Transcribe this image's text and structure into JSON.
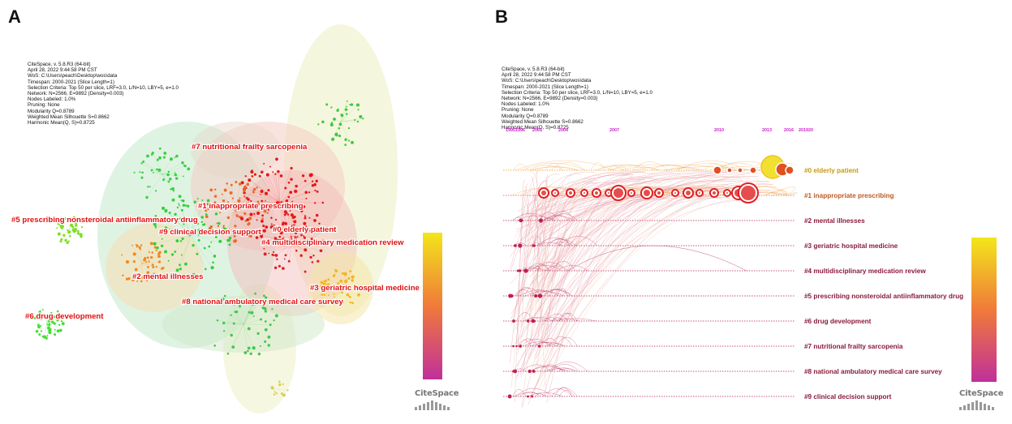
{
  "panel_a": {
    "letter": "A",
    "meta_lines": [
      "CiteSpace, v. 5.8.R3 (64-bit)",
      "April 28, 2022 9:44:58 PM CST",
      "WoS: C:\\Users\\peach\\Desktop\\wos\\data",
      "Timespan: 2000-2021 (Slice Length=1)",
      "Selection Criteria: Top 50 per slice, LRF=3.0, L/N=10, LBY=5, e=1.0",
      "Network: N=2566, E=9892 (Density=0.003)",
      "Nodes Labeled: 1.0%",
      "Pruning: None",
      "Modularity Q=0.8789",
      "Weighted Mean Silhouette S=0.8662",
      "Harmonic Mean(Q, S)=0.8725"
    ],
    "cluster_labels": [
      "#7 nutritional frailty sarcopenia",
      "#1 inappropriate prescribing",
      "#5 prescribing nonsteroidal antiinflammatory drug",
      "#9 clinical decision support",
      "#0 elderly patient",
      "#4 multidisciplinary medication review",
      "#2 mental illnesses",
      "#3 geriatric hospital medicine",
      "#8 national ambulatory medical care survey",
      "#6 drug development"
    ],
    "logo": "CiteSpace"
  },
  "panel_b": {
    "letter": "B",
    "meta_lines": [
      "CiteSpace, v. 5.8.R3 (64-bit)",
      "April 28, 2022 9:44:58 PM CST",
      "WoS: C:\\Users\\peach\\Desktop\\wos\\data",
      "Timespan: 2000-2021 (Slice Length=1)",
      "Selection Criteria: Top 50 per slice, LRF=3.0, L/N=10, LBY=5, e=1.0",
      "Network: N=2566, E=9892 (Density=0.003)",
      "Nodes Labeled: 1.0%",
      "Pruning: None",
      "Modularity Q=0.8789",
      "Weighted Mean Silhouette S=0.8662",
      "Harmonic Mean(Q, S)=0.8725"
    ],
    "year_ticks": [
      "19951996",
      "2001",
      "2004",
      "2007",
      "2010",
      "2013",
      "2016",
      "201920"
    ],
    "timeline_labels": [
      "#0 elderly patient",
      "#1 inappropriate prescribing",
      "#2 mental illnesses",
      "#3 geriatric hospital medicine",
      "#4 multidisciplinary medication review",
      "#5 prescribing nonsteroidal antiinflammatory drug",
      "#6 drug development",
      "#7 nutritional frailty sarcopenia",
      "#8 national ambulatory medical care survey",
      "#9 clinical decision support"
    ],
    "logo": "CiteSpace"
  },
  "colors": {
    "label_red": "#e01010",
    "label_gold": "#c89a10",
    "label_orange": "#c05a20",
    "label_maroon": "#8a1a3a",
    "year_tick": "#cc22cc",
    "gradient_top": "#f2e61a",
    "gradient_mid": "#f07a3a",
    "gradient_bottom": "#c0309a"
  }
}
